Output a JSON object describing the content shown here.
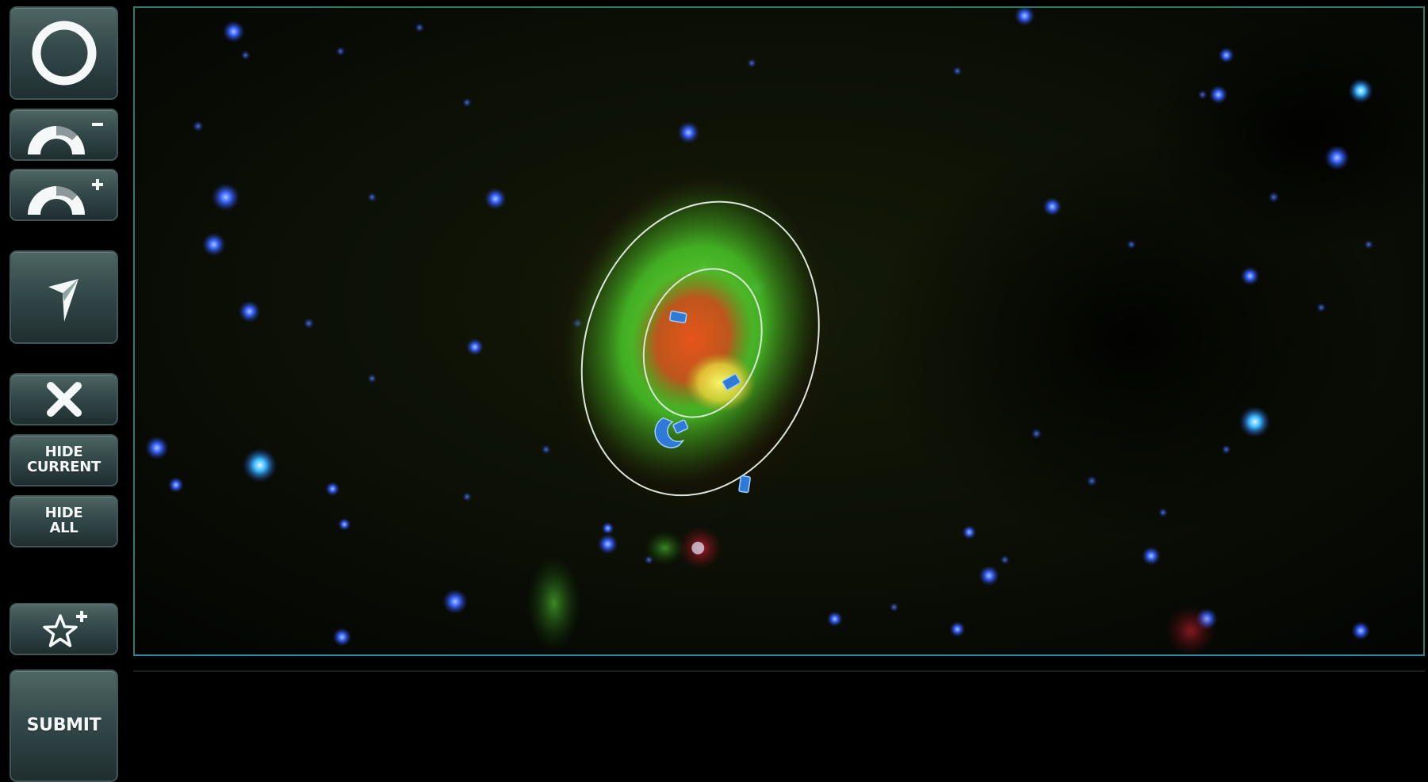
{
  "toolbar": {
    "ellipse_tool": {
      "icon": "ring-icon"
    },
    "shrink_tool": {
      "icon": "arc-minus-icon"
    },
    "grow_tool": {
      "icon": "arc-plus-icon"
    },
    "pointer_tool": {
      "icon": "cursor-arrow-icon"
    },
    "delete_tool": {
      "icon": "close-icon"
    },
    "hide_current": {
      "line1": "HIDE",
      "line2": "CURRENT"
    },
    "hide_all": {
      "line1": "HIDE",
      "line2": "ALL"
    },
    "favorite": {
      "icon": "star-plus-icon"
    },
    "submit": {
      "label": "SUBMIT"
    }
  },
  "viewer": {
    "frame_color": "#2f7a6b",
    "bubble": {
      "outer_glow": "#4ec83a",
      "core": "#e0501e",
      "hotspot": "#f2f04a",
      "outline": "#e8f0e8"
    },
    "star_color": "#3b6cff"
  }
}
